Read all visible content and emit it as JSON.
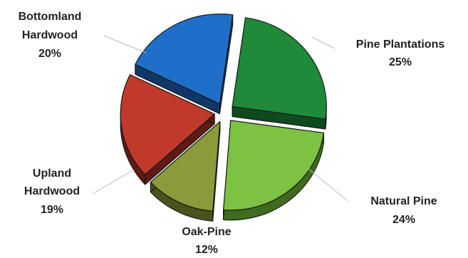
{
  "chart_data": {
    "type": "pie",
    "title": "",
    "slices": [
      {
        "label": "Pine Plantations",
        "value": 25,
        "value_label": "25%",
        "color": "#1f8a3a",
        "side_color": "#0f4a1e"
      },
      {
        "label": "Natural Pine",
        "value": 24,
        "value_label": "24%",
        "color": "#7dc242",
        "side_color": "#3f6b1f"
      },
      {
        "label": "Oak-Pine",
        "value": 12,
        "value_label": "12%",
        "color": "#8b9a3a",
        "side_color": "#4a521e"
      },
      {
        "label": "Upland Hardwood",
        "value": 19,
        "value_label": "19%",
        "color": "#c0392b",
        "side_color": "#5e1a14"
      },
      {
        "label": "Bottomland Hardwood",
        "value": 20,
        "value_label": "20%",
        "color": "#1f6fc9",
        "side_color": "#0f3866"
      }
    ],
    "legend": "none",
    "exploded": true,
    "style": "3d"
  },
  "labels": {
    "pine_plantations": [
      "Pine Plantations",
      "25%"
    ],
    "natural_pine": [
      "Natural Pine",
      "24%"
    ],
    "oak_pine": [
      "Oak-Pine",
      "12%"
    ],
    "upland_hardwood": [
      "Upland",
      "Hardwood",
      "19%"
    ],
    "bottomland_hardwood": [
      "Bottomland",
      "Hardwood",
      "20%"
    ]
  }
}
